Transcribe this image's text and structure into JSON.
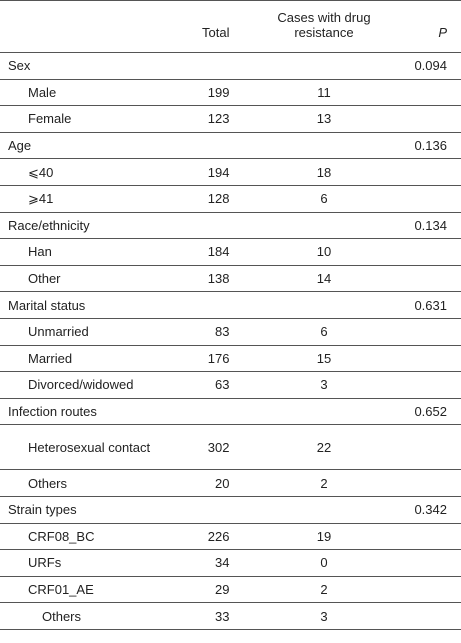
{
  "header": {
    "total": "Total",
    "cases": "Cases with drug resistance",
    "p": "P"
  },
  "groups": [
    {
      "label": "Sex",
      "p": 0.094,
      "rows": [
        {
          "label": "Male",
          "total": 199,
          "cases": 11
        },
        {
          "label": "Female",
          "total": 123,
          "cases": 13
        }
      ]
    },
    {
      "label": "Age",
      "p": 0.136,
      "rows": [
        {
          "label": "⩽40",
          "total": 194,
          "cases": 18
        },
        {
          "label": "⩾41",
          "total": 128,
          "cases": 6
        }
      ]
    },
    {
      "label": "Race/ethnicity",
      "p": 0.134,
      "rows": [
        {
          "label": "Han",
          "total": 184,
          "cases": 10
        },
        {
          "label": "Other",
          "total": 138,
          "cases": 14
        }
      ]
    },
    {
      "label": "Marital status",
      "p": 0.631,
      "rows": [
        {
          "label": "Unmarried",
          "total": 83,
          "cases": 6
        },
        {
          "label": "Married",
          "total": 176,
          "cases": 15
        },
        {
          "label": "Divorced/widowed",
          "total": 63,
          "cases": 3
        }
      ]
    },
    {
      "label": "Infection routes",
      "p": 0.652,
      "rows": [
        {
          "label": "Heterosexual contact",
          "total": 302,
          "cases": 22
        },
        {
          "label": "Others",
          "total": 20,
          "cases": 2
        }
      ]
    },
    {
      "label": "Strain types",
      "p": 0.342,
      "rows": [
        {
          "label": "CRF08_BC",
          "total": 226,
          "cases": 19
        },
        {
          "label": "URFs",
          "total": 34,
          "cases": 0
        },
        {
          "label": "CRF01_AE",
          "total": 29,
          "cases": 2
        },
        {
          "label": "Others",
          "total": 33,
          "cases": 3
        }
      ]
    }
  ]
}
